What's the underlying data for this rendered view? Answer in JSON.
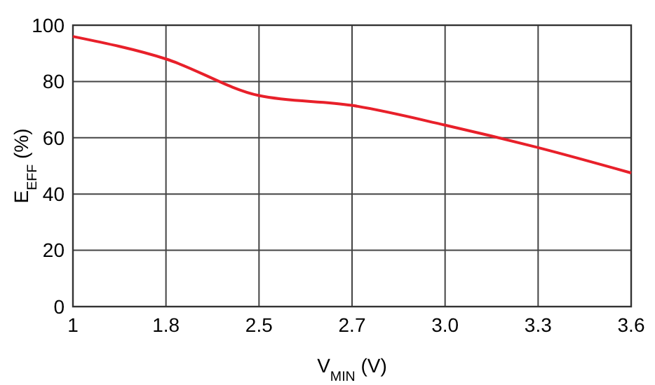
{
  "chart_data": {
    "type": "line",
    "xlabel": "V$_{MIN}$ (V)",
    "ylabel": "E$_{EFF}$ (%)",
    "categories": [
      "1",
      "1.8",
      "2.5",
      "2.7",
      "3.0",
      "3.3",
      "3.6"
    ],
    "series": [
      {
        "color": "#e8202a",
        "values": [
          96,
          88,
          75,
          71.5,
          64.5,
          56.5,
          47.5
        ]
      }
    ],
    "ylim": [
      0,
      100
    ],
    "yticks": [
      0,
      20,
      40,
      60,
      80,
      100
    ],
    "grid": true,
    "line_style": "solid",
    "marker": "none"
  }
}
